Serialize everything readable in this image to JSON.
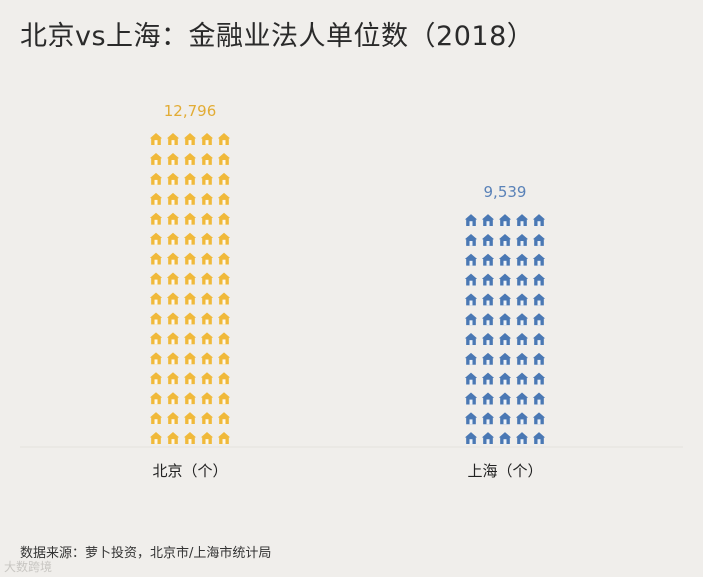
{
  "title": "北京vs上海：金融业法人单位数（2018）",
  "source": "数据来源：萝卜投资，北京市/上海市统计局",
  "watermark": "大数跨境",
  "colors": {
    "background": "#f0eeeb",
    "beijing": "#f0b93a",
    "shanghai": "#4a78b4",
    "beijing_label": "#e2ac35",
    "shanghai_label": "#5a82b8"
  },
  "icon": "house-icon",
  "chart_data": {
    "type": "bar",
    "subtype": "pictogram",
    "title": "北京vs上海：金融业法人单位数（2018）",
    "categories": [
      "北京（个）",
      "上海（个）"
    ],
    "values": [
      12796,
      9539
    ],
    "value_labels": [
      "12,796",
      "9,539"
    ],
    "series": [
      {
        "name": "金融业法人单位数",
        "values": [
          12796,
          9539
        ]
      }
    ],
    "xlabel": "",
    "ylabel": "",
    "ylim": [
      0,
      12796
    ],
    "grid": false,
    "legend": "none"
  }
}
